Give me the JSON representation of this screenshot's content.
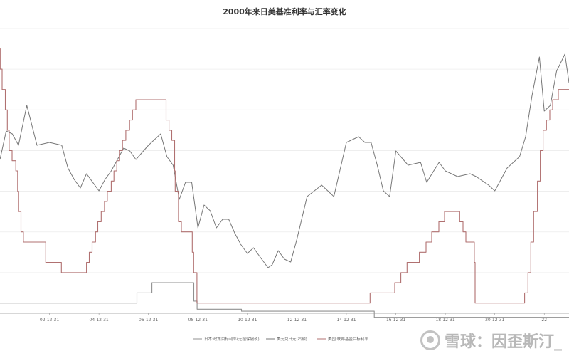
{
  "chart_data": {
    "type": "line",
    "title": "2000年来日美基准利率与汇率变化",
    "x_tick_labels": [
      "02-12-31",
      "04-12-31",
      "06-12-31",
      "08-12-31",
      "10-12-31",
      "12-12-31",
      "14-12-31",
      "16-12-31",
      "18-12-31",
      "20-12-31",
      "22"
    ],
    "x_tick_dates": [
      "2002-12-31",
      "2004-12-31",
      "2006-12-31",
      "2008-12-31",
      "2010-12-31",
      "2012-12-31",
      "2014-12-31",
      "2016-12-31",
      "2018-12-31",
      "2020-12-31",
      "2022-12-31"
    ],
    "x_range": [
      "2000-12-31",
      "2023-12-31"
    ],
    "left_axis_range": [
      0,
      7
    ],
    "right_axis_range": [
      60,
      160
    ],
    "grid": true,
    "legend_position": "bottom",
    "series": [
      {
        "name": "日本:政策目标利率(无担保隔夜)",
        "axis": "left",
        "color": "#909090",
        "points": [
          [
            "2000-12-31",
            0.25
          ],
          [
            "2006-07-14",
            0.25
          ],
          [
            "2006-07-14",
            0.5
          ],
          [
            "2007-02-21",
            0.5
          ],
          [
            "2007-02-21",
            0.75
          ],
          [
            "2008-10-31",
            0.75
          ],
          [
            "2008-10-31",
            0.3
          ],
          [
            "2008-12-19",
            0.3
          ],
          [
            "2008-12-19",
            0.1
          ],
          [
            "2010-10-05",
            0.1
          ],
          [
            "2010-10-05",
            0.05
          ],
          [
            "2016-02-16",
            0.05
          ],
          [
            "2016-02-16",
            -0.1
          ],
          [
            "2023-12-31",
            -0.1
          ]
        ]
      },
      {
        "name": "美元兑日元(右轴)",
        "axis": "right",
        "color": "#777777",
        "points": [
          [
            "2000-12-31",
            114
          ],
          [
            "2001-04-01",
            124
          ],
          [
            "2001-07-01",
            123
          ],
          [
            "2001-09-30",
            119
          ],
          [
            "2002-01-31",
            133
          ],
          [
            "2002-06-30",
            119
          ],
          [
            "2002-12-31",
            120
          ],
          [
            "2003-06-30",
            119
          ],
          [
            "2003-09-30",
            111
          ],
          [
            "2003-12-31",
            107
          ],
          [
            "2004-03-31",
            104
          ],
          [
            "2004-06-30",
            109
          ],
          [
            "2004-12-31",
            103
          ],
          [
            "2005-03-31",
            107
          ],
          [
            "2005-06-30",
            110
          ],
          [
            "2005-12-31",
            118
          ],
          [
            "2006-03-31",
            117
          ],
          [
            "2006-06-30",
            114
          ],
          [
            "2006-12-31",
            119
          ],
          [
            "2007-06-30",
            123
          ],
          [
            "2007-09-30",
            115
          ],
          [
            "2007-12-31",
            112
          ],
          [
            "2008-03-31",
            100
          ],
          [
            "2008-06-30",
            106
          ],
          [
            "2008-09-30",
            106
          ],
          [
            "2008-12-31",
            90
          ],
          [
            "2009-03-31",
            98
          ],
          [
            "2009-06-30",
            96
          ],
          [
            "2009-09-30",
            90
          ],
          [
            "2009-12-31",
            93
          ],
          [
            "2010-03-31",
            93
          ],
          [
            "2010-06-30",
            88
          ],
          [
            "2010-09-30",
            84
          ],
          [
            "2010-12-31",
            81
          ],
          [
            "2011-03-31",
            83
          ],
          [
            "2011-06-30",
            80
          ],
          [
            "2011-10-31",
            76
          ],
          [
            "2011-12-31",
            77
          ],
          [
            "2012-03-31",
            82
          ],
          [
            "2012-06-30",
            79
          ],
          [
            "2012-09-30",
            78
          ],
          [
            "2012-12-31",
            86
          ],
          [
            "2013-05-31",
            101
          ],
          [
            "2013-12-31",
            105
          ],
          [
            "2014-06-30",
            101
          ],
          [
            "2014-12-31",
            120
          ],
          [
            "2015-06-30",
            122
          ],
          [
            "2015-09-30",
            120
          ],
          [
            "2015-12-31",
            120
          ],
          [
            "2016-03-31",
            112
          ],
          [
            "2016-06-30",
            103
          ],
          [
            "2016-09-30",
            101
          ],
          [
            "2016-12-31",
            117
          ],
          [
            "2017-06-30",
            112
          ],
          [
            "2017-12-31",
            113
          ],
          [
            "2018-03-31",
            106
          ],
          [
            "2018-09-30",
            113
          ],
          [
            "2018-12-31",
            110
          ],
          [
            "2019-06-30",
            108
          ],
          [
            "2019-12-31",
            109
          ],
          [
            "2020-03-31",
            108
          ],
          [
            "2020-09-30",
            105
          ],
          [
            "2020-12-31",
            103
          ],
          [
            "2021-06-30",
            111
          ],
          [
            "2021-12-31",
            115
          ],
          [
            "2022-03-31",
            122
          ],
          [
            "2022-06-30",
            136
          ],
          [
            "2022-10-20",
            150
          ],
          [
            "2022-12-31",
            131
          ],
          [
            "2023-03-31",
            133
          ],
          [
            "2023-06-30",
            145
          ],
          [
            "2023-10-31",
            151
          ],
          [
            "2023-12-31",
            141
          ]
        ]
      },
      {
        "name": "美国:联邦基金目标利率",
        "axis": "left",
        "color": "#b07070",
        "points": [
          [
            "2000-12-31",
            6.5
          ],
          [
            "2001-01-03",
            6.0
          ],
          [
            "2001-01-31",
            5.5
          ],
          [
            "2001-03-20",
            5.0
          ],
          [
            "2001-04-18",
            4.5
          ],
          [
            "2001-05-15",
            4.0
          ],
          [
            "2001-06-27",
            3.75
          ],
          [
            "2001-08-21",
            3.5
          ],
          [
            "2001-09-17",
            3.0
          ],
          [
            "2001-10-02",
            2.5
          ],
          [
            "2001-11-06",
            2.0
          ],
          [
            "2001-12-11",
            1.75
          ],
          [
            "2002-11-06",
            1.25
          ],
          [
            "2003-06-25",
            1.0
          ],
          [
            "2004-06-30",
            1.25
          ],
          [
            "2004-08-10",
            1.5
          ],
          [
            "2004-09-21",
            1.75
          ],
          [
            "2004-11-10",
            2.0
          ],
          [
            "2004-12-14",
            2.25
          ],
          [
            "2005-02-02",
            2.5
          ],
          [
            "2005-03-22",
            2.75
          ],
          [
            "2005-05-03",
            3.0
          ],
          [
            "2005-06-30",
            3.25
          ],
          [
            "2005-08-09",
            3.5
          ],
          [
            "2005-09-20",
            3.75
          ],
          [
            "2005-11-01",
            4.0
          ],
          [
            "2005-12-13",
            4.25
          ],
          [
            "2006-01-31",
            4.5
          ],
          [
            "2006-03-28",
            4.75
          ],
          [
            "2006-05-10",
            5.0
          ],
          [
            "2006-06-29",
            5.25
          ],
          [
            "2007-09-18",
            4.75
          ],
          [
            "2007-10-31",
            4.5
          ],
          [
            "2007-12-11",
            4.25
          ],
          [
            "2008-01-22",
            3.5
          ],
          [
            "2008-01-30",
            3.0
          ],
          [
            "2008-03-18",
            2.25
          ],
          [
            "2008-04-30",
            2.0
          ],
          [
            "2008-10-08",
            1.5
          ],
          [
            "2008-10-29",
            1.0
          ],
          [
            "2008-12-16",
            0.25
          ],
          [
            "2015-12-16",
            0.5
          ],
          [
            "2016-12-14",
            0.75
          ],
          [
            "2017-03-15",
            1.0
          ],
          [
            "2017-06-14",
            1.25
          ],
          [
            "2017-12-13",
            1.5
          ],
          [
            "2018-03-21",
            1.75
          ],
          [
            "2018-06-13",
            2.0
          ],
          [
            "2018-09-26",
            2.25
          ],
          [
            "2018-12-19",
            2.5
          ],
          [
            "2019-07-31",
            2.25
          ],
          [
            "2019-09-18",
            2.0
          ],
          [
            "2019-10-30",
            1.75
          ],
          [
            "2020-03-03",
            1.25
          ],
          [
            "2020-03-15",
            0.25
          ],
          [
            "2022-03-16",
            0.5
          ],
          [
            "2022-05-04",
            1.0
          ],
          [
            "2022-06-15",
            1.75
          ],
          [
            "2022-07-27",
            2.5
          ],
          [
            "2022-09-21",
            3.25
          ],
          [
            "2022-11-02",
            4.0
          ],
          [
            "2022-12-14",
            4.5
          ],
          [
            "2023-02-01",
            4.75
          ],
          [
            "2023-03-22",
            5.0
          ],
          [
            "2023-05-03",
            5.25
          ],
          [
            "2023-07-26",
            5.5
          ],
          [
            "2023-12-31",
            5.5
          ]
        ]
      }
    ]
  },
  "watermark": {
    "text": "雪球：因歪斯汀_"
  }
}
